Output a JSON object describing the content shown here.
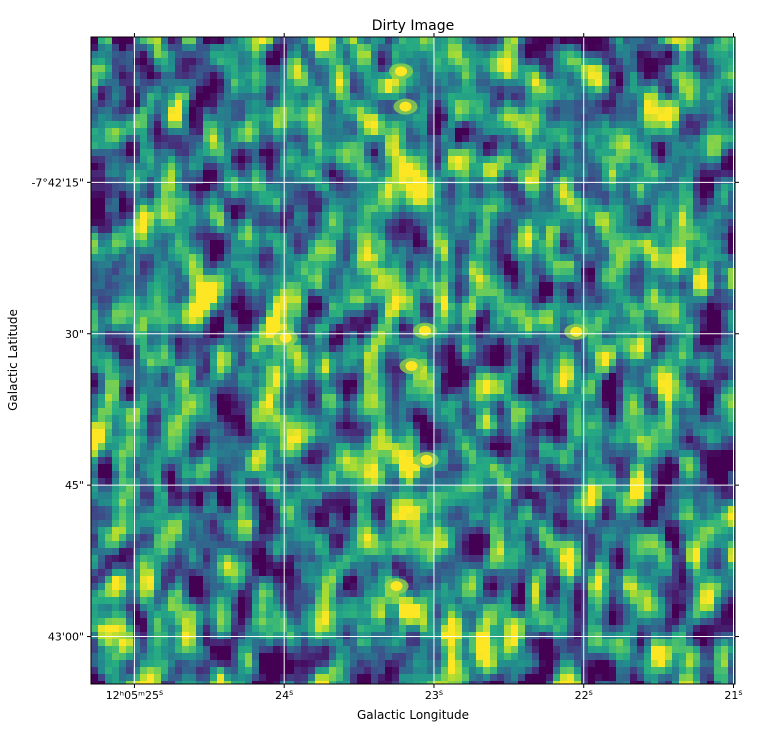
{
  "chart_data": {
    "type": "heatmap",
    "title": "Dirty Image",
    "xlabel": "Galactic Longitude",
    "ylabel": "Galactic Latitude",
    "colormap": "viridis",
    "grid": true,
    "grid_color": "#ffffff",
    "x_ticks": [
      {
        "label": "12h05m25s",
        "major": "12ʰ05ᵐ25",
        "sup": "s",
        "value_s": 25
      },
      {
        "label": "24s",
        "major": "24",
        "sup": "s",
        "value_s": 24
      },
      {
        "label": "23s",
        "major": "23",
        "sup": "s",
        "value_s": 23
      },
      {
        "label": "22s",
        "major": "22",
        "sup": "s",
        "value_s": 22
      },
      {
        "label": "21s",
        "major": "21",
        "sup": "s",
        "value_s": 21
      }
    ],
    "y_ticks": [
      {
        "label": "-7°42'15\"",
        "value_arcsec": 15
      },
      {
        "label": "30\"",
        "value_arcsec": 30
      },
      {
        "label": "45\"",
        "value_arcsec": 45
      },
      {
        "label": "43'00\"",
        "value_arcsec": 60
      }
    ],
    "x_range_s": [
      25.29,
      20.99
    ],
    "y_range_arcsec": [
      0.6,
      64.7
    ],
    "bright_sources": [
      {
        "ra_s": 23.19,
        "dec_arcsec": 7.5
      },
      {
        "ra_s": 23.15,
        "dec_arcsec": 33.2
      },
      {
        "ra_s": 23.06,
        "dec_arcsec": 29.7
      },
      {
        "ra_s": 22.05,
        "dec_arcsec": 29.8
      },
      {
        "ra_s": 23.99,
        "dec_arcsec": 30.4
      },
      {
        "ra_s": 23.25,
        "dec_arcsec": 55.0
      },
      {
        "ra_s": 23.05,
        "dec_arcsec": 42.5
      },
      {
        "ra_s": 23.22,
        "dec_arcsec": 4.0
      }
    ]
  }
}
